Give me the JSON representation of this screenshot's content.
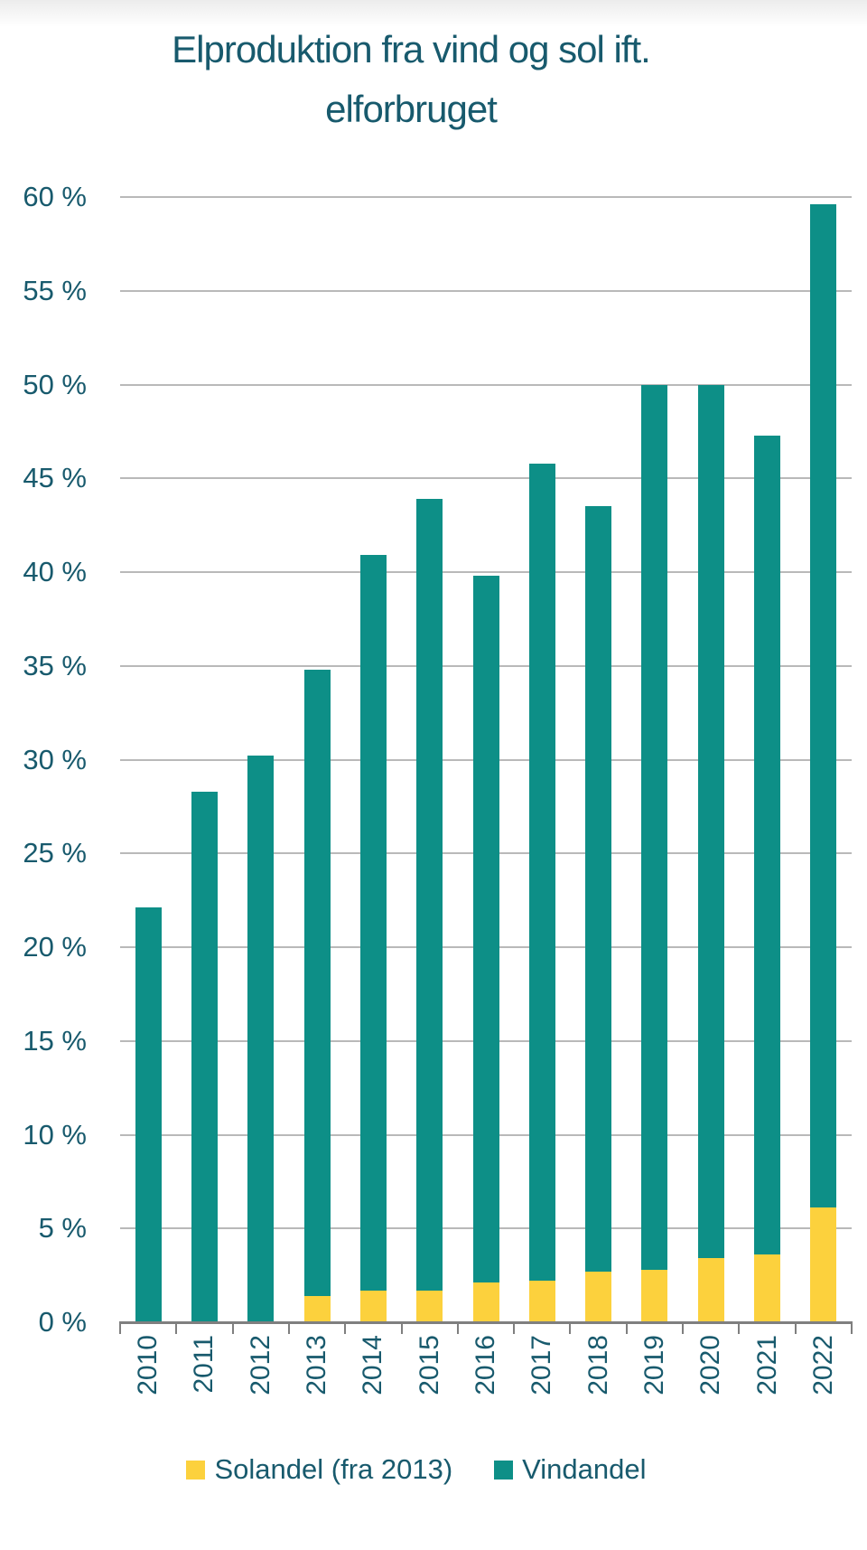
{
  "page": {
    "background": "#ffffff",
    "title_lines": [
      "Elproduktion fra vind og sol ift.",
      "elforbruget"
    ]
  },
  "chart_data": {
    "type": "bar",
    "stacked": true,
    "title": "Elproduktion fra vind og sol ift. elforbruget",
    "categories": [
      "2010",
      "2011",
      "2012",
      "2013",
      "2014",
      "2015",
      "2016",
      "2017",
      "2018",
      "2019",
      "2020",
      "2021",
      "2022"
    ],
    "series": [
      {
        "name": "Solandel (fra 2013)",
        "color": "#FCD13D",
        "values": [
          0,
          0,
          0,
          1.4,
          1.7,
          1.7,
          2.1,
          2.2,
          2.7,
          2.8,
          3.4,
          3.6,
          6.1
        ]
      },
      {
        "name": "Vindandel",
        "color": "#0D8F87",
        "values": [
          22.1,
          28.3,
          30.2,
          33.4,
          39.2,
          42.2,
          37.7,
          43.6,
          40.8,
          47.2,
          46.6,
          43.7,
          53.5
        ]
      }
    ],
    "stack_totals": [
      22.1,
      28.3,
      30.2,
      34.8,
      40.9,
      43.9,
      39.8,
      45.8,
      43.5,
      50.0,
      50.0,
      47.3,
      59.6
    ],
    "ylim": [
      0,
      60
    ],
    "ytick_step": 5,
    "ytick_suffix": " %",
    "grid": true,
    "legend_position": "bottom",
    "colors": {
      "text": "#185A6D",
      "gridline": "#B9B9B9",
      "axis": "#7F7F7F"
    }
  }
}
